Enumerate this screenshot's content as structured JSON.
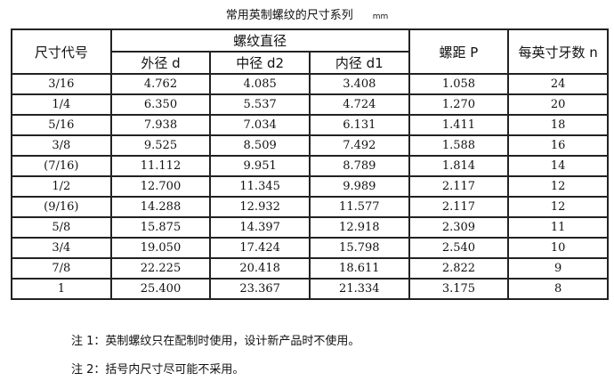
{
  "title": "常用英制螺纹的尺寸系列",
  "unit": "mm",
  "headers": {
    "size_code": "尺寸代号",
    "thread_diameter": "螺纹直径",
    "major": "外径 d",
    "pitch_dia": "中径 d2",
    "minor": "内径 d1",
    "pitch": "螺距 P",
    "tpi": "每英寸牙数 n"
  },
  "rows": [
    [
      "3/16",
      "4.762",
      "4.085",
      "3.408",
      "1.058",
      "24"
    ],
    [
      "1/4",
      "6.350",
      "5.537",
      "4.724",
      "1.270",
      "20"
    ],
    [
      "5/16",
      "7.938",
      "7.034",
      "6.131",
      "1.411",
      "18"
    ],
    [
      "3/8",
      "9.525",
      "8.509",
      "7.492",
      "1.588",
      "16"
    ],
    [
      "(7/16)",
      "11.112",
      "9.951",
      "8.789",
      "1.814",
      "14"
    ],
    [
      "1/2",
      "12.700",
      "11.345",
      "9.989",
      "2.117",
      "12"
    ],
    [
      "(9/16)",
      "14.288",
      "12.932",
      "11.577",
      "2.117",
      "12"
    ],
    [
      "5/8",
      "15.875",
      "14.397",
      "12.918",
      "2.309",
      "11"
    ],
    [
      "3/4",
      "19.050",
      "17.424",
      "15.798",
      "2.540",
      "10"
    ],
    [
      "7/8",
      "22.225",
      "20.418",
      "18.611",
      "2.822",
      "9"
    ],
    [
      "1",
      "25.400",
      "23.367",
      "21.334",
      "3.175",
      "8"
    ]
  ],
  "notes": [
    "注 1：英制螺纹只在配制时使用，设计新产品时不使用。",
    "注 2：括号内尺寸尽可能不采用。"
  ]
}
